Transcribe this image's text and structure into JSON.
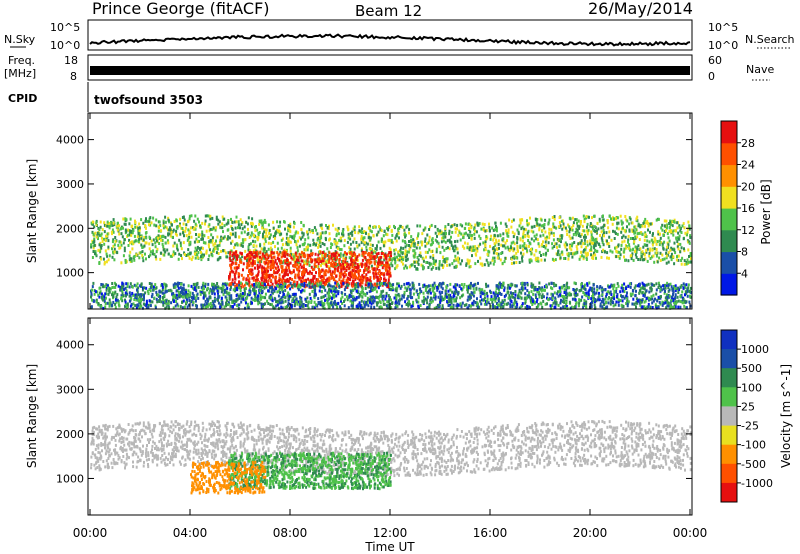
{
  "header": {
    "station": "Prince George (fitACF)",
    "beam": "Beam 12",
    "date": "26/May/2014"
  },
  "noise_panel": {
    "left_label": "N.Sky",
    "right_label": "N.Search",
    "left_ticks": [
      "10^5",
      "10^0"
    ],
    "right_ticks": [
      "10^5",
      "10^0"
    ]
  },
  "freq_panel": {
    "left_label_1": "Freq.",
    "left_label_2": "[MHz]",
    "left_ticks": [
      "18",
      "8"
    ],
    "right_label": "Nave",
    "right_ticks": [
      "60",
      "0"
    ]
  },
  "cpid_panel": {
    "label": "CPID",
    "value": "twofsound 3503"
  },
  "colors": {
    "power_scale": [
      "#0018e6",
      "#1a4fa8",
      "#2f8a50",
      "#4fc24a",
      "#f0e020",
      "#ff9000",
      "#ff5000",
      "#e61010"
    ],
    "velocity_scale": [
      "#1030c0",
      "#1a4fa8",
      "#2f8a50",
      "#4fc24a",
      "#b8b8b8",
      "#e8e020",
      "#ff9000",
      "#ff5000",
      "#e61010"
    ],
    "ground_scatter": "#b8b8b8"
  },
  "chart_data": [
    {
      "type": "heatmap",
      "name": "power",
      "ylabel": "Slant Range [km]",
      "xlim": [
        "00:00",
        "24:00"
      ],
      "ylim": [
        180,
        4600
      ],
      "yticks": [
        "1000",
        "2000",
        "3000",
        "4000"
      ],
      "xticks": [
        "00:00",
        "04:00",
        "08:00",
        "12:00",
        "16:00",
        "20:00",
        "00:00"
      ],
      "colorbar": {
        "label": "Power [dB]",
        "unit": "dB",
        "ticks": [
          "4",
          "8",
          "12",
          "16",
          "20",
          "24",
          "28"
        ],
        "range": [
          0,
          32
        ]
      },
      "features": [
        {
          "band": "F-region scatter",
          "hours": [
            0,
            24
          ],
          "range_km": [
            1200,
            2200
          ],
          "power_db": [
            8,
            20
          ]
        },
        {
          "band": "intense scatter",
          "hours": [
            5.5,
            12
          ],
          "range_km": [
            700,
            1500
          ],
          "power_db": [
            24,
            32
          ]
        },
        {
          "band": "near-range echoes",
          "hours": [
            0,
            24
          ],
          "range_km": [
            180,
            800
          ],
          "power_db": [
            2,
            16
          ]
        }
      ]
    },
    {
      "type": "heatmap",
      "name": "velocity",
      "ylabel": "Slant Range [km]",
      "xlabel": "Time UT",
      "xlim": [
        "00:00",
        "24:00"
      ],
      "ylim": [
        180,
        4600
      ],
      "yticks": [
        "1000",
        "2000",
        "3000",
        "4000"
      ],
      "xticks": [
        "00:00",
        "04:00",
        "08:00",
        "12:00",
        "16:00",
        "20:00",
        "00:00"
      ],
      "colorbar": {
        "label": "Velocity [m s^-1]",
        "unit": "m s^-1",
        "ticks": [
          "1000",
          "500",
          "100",
          "25",
          "-25",
          "-100",
          "-500",
          "-1000"
        ]
      },
      "features": [
        {
          "band": "ground scatter",
          "hours": [
            0,
            24
          ],
          "range_km": [
            1200,
            2200
          ],
          "velocity_ms": [
            -25,
            25
          ]
        },
        {
          "band": "ionospheric flow",
          "hours": [
            5.5,
            12
          ],
          "range_km": [
            800,
            1600
          ],
          "velocity_ms": [
            25,
            150
          ]
        },
        {
          "band": "receding flow",
          "hours": [
            4,
            7
          ],
          "range_km": [
            700,
            1400
          ],
          "velocity_ms": [
            -500,
            -100
          ]
        }
      ]
    }
  ],
  "xlabel": "Time UT"
}
